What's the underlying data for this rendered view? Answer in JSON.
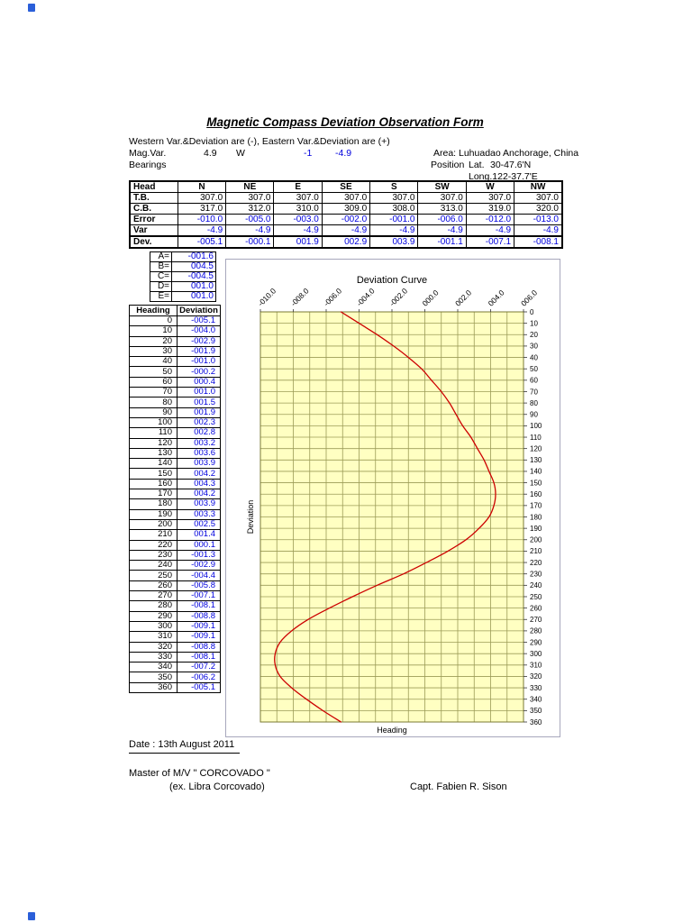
{
  "header": {
    "title": "Magnetic Compass Deviation Observation Form",
    "sign_note": "Western Var.&Deviation are (-), Eastern Var.&Deviation are (+)",
    "mag_var_label": "Mag.Var.",
    "mag_var": "4.9",
    "mag_var_dir": "W",
    "var_whole": "-1",
    "var_total": "-4.9",
    "bearings_label": "Bearings",
    "area_label": "Area:",
    "area": "Luhuadao Anchorage, China",
    "position_label": "Position",
    "lat_label": "Lat.",
    "lat": "30-47.6'N",
    "long": "Long.122-37.7'E"
  },
  "compass_table": {
    "corner": "Head",
    "columns": [
      "N",
      "NE",
      "E",
      "SE",
      "S",
      "SW",
      "W",
      "NW"
    ],
    "rows": [
      {
        "label": "T.B.",
        "color": "black",
        "values": [
          "307.0",
          "307.0",
          "307.0",
          "307.0",
          "307.0",
          "307.0",
          "307.0",
          "307.0"
        ]
      },
      {
        "label": "C.B.",
        "color": "black",
        "values": [
          "317.0",
          "312.0",
          "310.0",
          "309.0",
          "308.0",
          "313.0",
          "319.0",
          "320.0"
        ]
      },
      {
        "label": "Error",
        "color": "blue",
        "values": [
          "-010.0",
          "-005.0",
          "-003.0",
          "-002.0",
          "-001.0",
          "-006.0",
          "-012.0",
          "-013.0"
        ]
      },
      {
        "label": "Var",
        "color": "blue",
        "values": [
          "-4.9",
          "-4.9",
          "-4.9",
          "-4.9",
          "-4.9",
          "-4.9",
          "-4.9",
          "-4.9"
        ]
      },
      {
        "label": "Dev.",
        "color": "blue",
        "heavy_top": true,
        "values": [
          "-005.1",
          "-000.1",
          "001.9",
          "002.9",
          "003.9",
          "-001.1",
          "-007.1",
          "-008.1"
        ]
      }
    ]
  },
  "coefficients": [
    {
      "label": "A=",
      "value": "-001.6"
    },
    {
      "label": "B=",
      "value": "004.5"
    },
    {
      "label": "C=",
      "value": "-004.5"
    },
    {
      "label": "D=",
      "value": "001.0"
    },
    {
      "label": "E=",
      "value": "001.0"
    }
  ],
  "deviation_table": {
    "headers": [
      "Heading",
      "Deviation"
    ],
    "rows": [
      [
        0,
        "-005.1"
      ],
      [
        10,
        "-004.0"
      ],
      [
        20,
        "-002.9"
      ],
      [
        30,
        "-001.9"
      ],
      [
        40,
        "-001.0"
      ],
      [
        50,
        "-000.2"
      ],
      [
        60,
        "000.4"
      ],
      [
        70,
        "001.0"
      ],
      [
        80,
        "001.5"
      ],
      [
        90,
        "001.9"
      ],
      [
        100,
        "002.3"
      ],
      [
        110,
        "002.8"
      ],
      [
        120,
        "003.2"
      ],
      [
        130,
        "003.6"
      ],
      [
        140,
        "003.9"
      ],
      [
        150,
        "004.2"
      ],
      [
        160,
        "004.3"
      ],
      [
        170,
        "004.2"
      ],
      [
        180,
        "003.9"
      ],
      [
        190,
        "003.3"
      ],
      [
        200,
        "002.5"
      ],
      [
        210,
        "001.4"
      ],
      [
        220,
        "000.1"
      ],
      [
        230,
        "-001.3"
      ],
      [
        240,
        "-002.9"
      ],
      [
        250,
        "-004.4"
      ],
      [
        260,
        "-005.8"
      ],
      [
        270,
        "-007.1"
      ],
      [
        280,
        "-008.1"
      ],
      [
        290,
        "-008.8"
      ],
      [
        300,
        "-009.1"
      ],
      [
        310,
        "-009.1"
      ],
      [
        320,
        "-008.8"
      ],
      [
        330,
        "-008.1"
      ],
      [
        340,
        "-007.2"
      ],
      [
        350,
        "-006.2"
      ],
      [
        360,
        "-005.1"
      ]
    ]
  },
  "chart_data": {
    "type": "line",
    "title": "Deviation Curve",
    "xlabel": "Heading",
    "ylabel": "Deviation",
    "orientation": "deviation on horizontal axis (labels on top), heading on vertical axis (0 at top to 360 at bottom, labels on right)",
    "dev_axis": {
      "min": -10,
      "max": 6,
      "grid_step": 1,
      "label_step": 2,
      "tick_labels": [
        "-010.0",
        "-008.0",
        "-006.0",
        "-004.0",
        "-002.0",
        "000.0",
        "002.0",
        "004.0",
        "006.0"
      ]
    },
    "heading_axis": {
      "min": 0,
      "max": 360,
      "step": 10
    },
    "headings": [
      0,
      10,
      20,
      30,
      40,
      50,
      60,
      70,
      80,
      90,
      100,
      110,
      120,
      130,
      140,
      150,
      160,
      170,
      180,
      190,
      200,
      210,
      220,
      230,
      240,
      250,
      260,
      270,
      280,
      290,
      300,
      310,
      320,
      330,
      340,
      350,
      360
    ],
    "deviations": [
      -5.1,
      -4.0,
      -2.9,
      -1.9,
      -1.0,
      -0.2,
      0.4,
      1.0,
      1.5,
      1.9,
      2.3,
      2.8,
      3.2,
      3.6,
      3.9,
      4.2,
      4.3,
      4.2,
      3.9,
      3.3,
      2.5,
      1.4,
      0.1,
      -1.3,
      -2.9,
      -4.4,
      -5.8,
      -7.1,
      -8.1,
      -8.8,
      -9.1,
      -9.1,
      -8.8,
      -8.1,
      -7.2,
      -6.2,
      -5.1
    ],
    "colors": {
      "plot_bg": "#ffffc2",
      "grid": "#9b9b57",
      "border": "#7a7a33",
      "line": "#cc0000",
      "value_blue": "#0000dd"
    },
    "legend": "none",
    "grid": "on"
  },
  "footer": {
    "date": "Date : 13th August 2011",
    "master": "Master of M/V \" CORCOVADO \"",
    "ex_name": "(ex. Libra Corcovado)",
    "captain": "Capt. Fabien R. Sison"
  }
}
